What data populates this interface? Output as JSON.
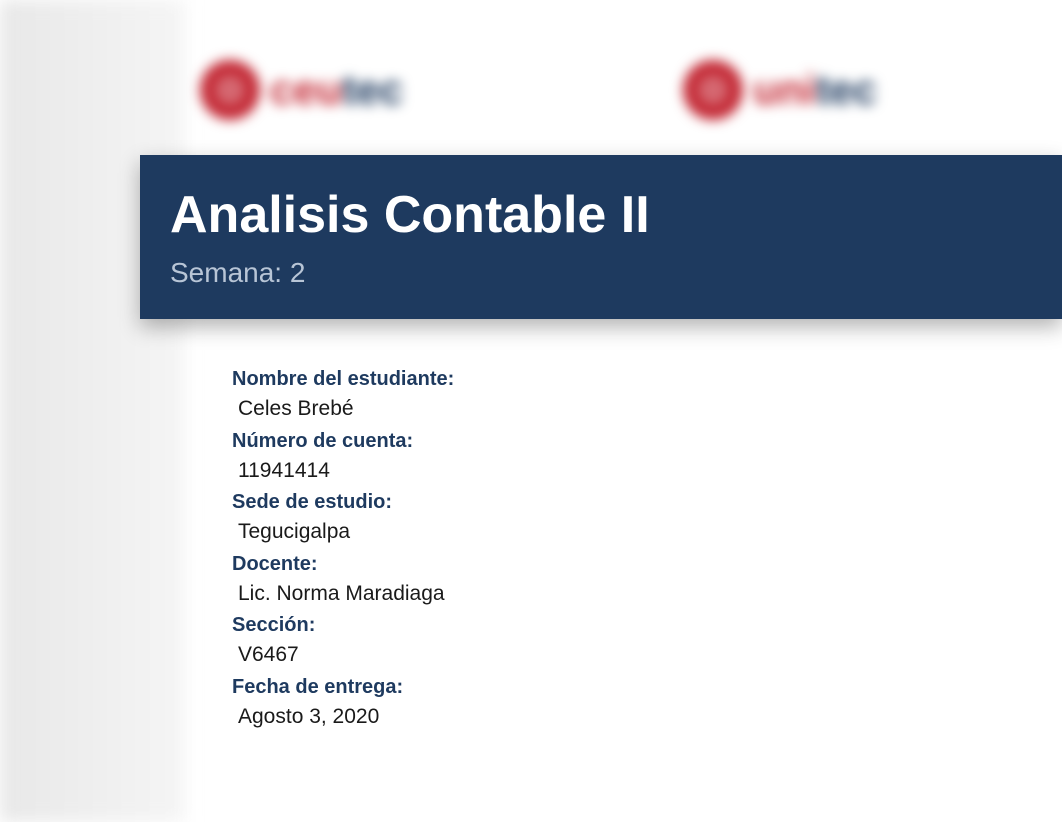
{
  "logos": {
    "left": {
      "name_prefix": "ceu",
      "name_suffix": "tec"
    },
    "right": {
      "name_prefix": "uni",
      "name_suffix": "tec"
    }
  },
  "banner": {
    "title": "Analisis Contable II",
    "subtitle": "Semana: 2"
  },
  "fields": {
    "student_name": {
      "label": "Nombre del estudiante:",
      "value": "Celes Brebé"
    },
    "account_number": {
      "label": "Número de cuenta:",
      "value": "11941414"
    },
    "campus": {
      "label": "Sede de estudio:",
      "value": "Tegucigalpa"
    },
    "teacher": {
      "label": "Docente:",
      "value": "Lic. Norma Maradiaga"
    },
    "section": {
      "label": "Sección:",
      "value": "V6467"
    },
    "due_date": {
      "label": "Fecha de entrega:",
      "value": "Agosto 3, 2020"
    }
  },
  "colors": {
    "banner_bg": "#1e3a5f",
    "label_color": "#1e3a5f",
    "value_color": "#1a1a1a",
    "accent_red": "#c32834"
  }
}
